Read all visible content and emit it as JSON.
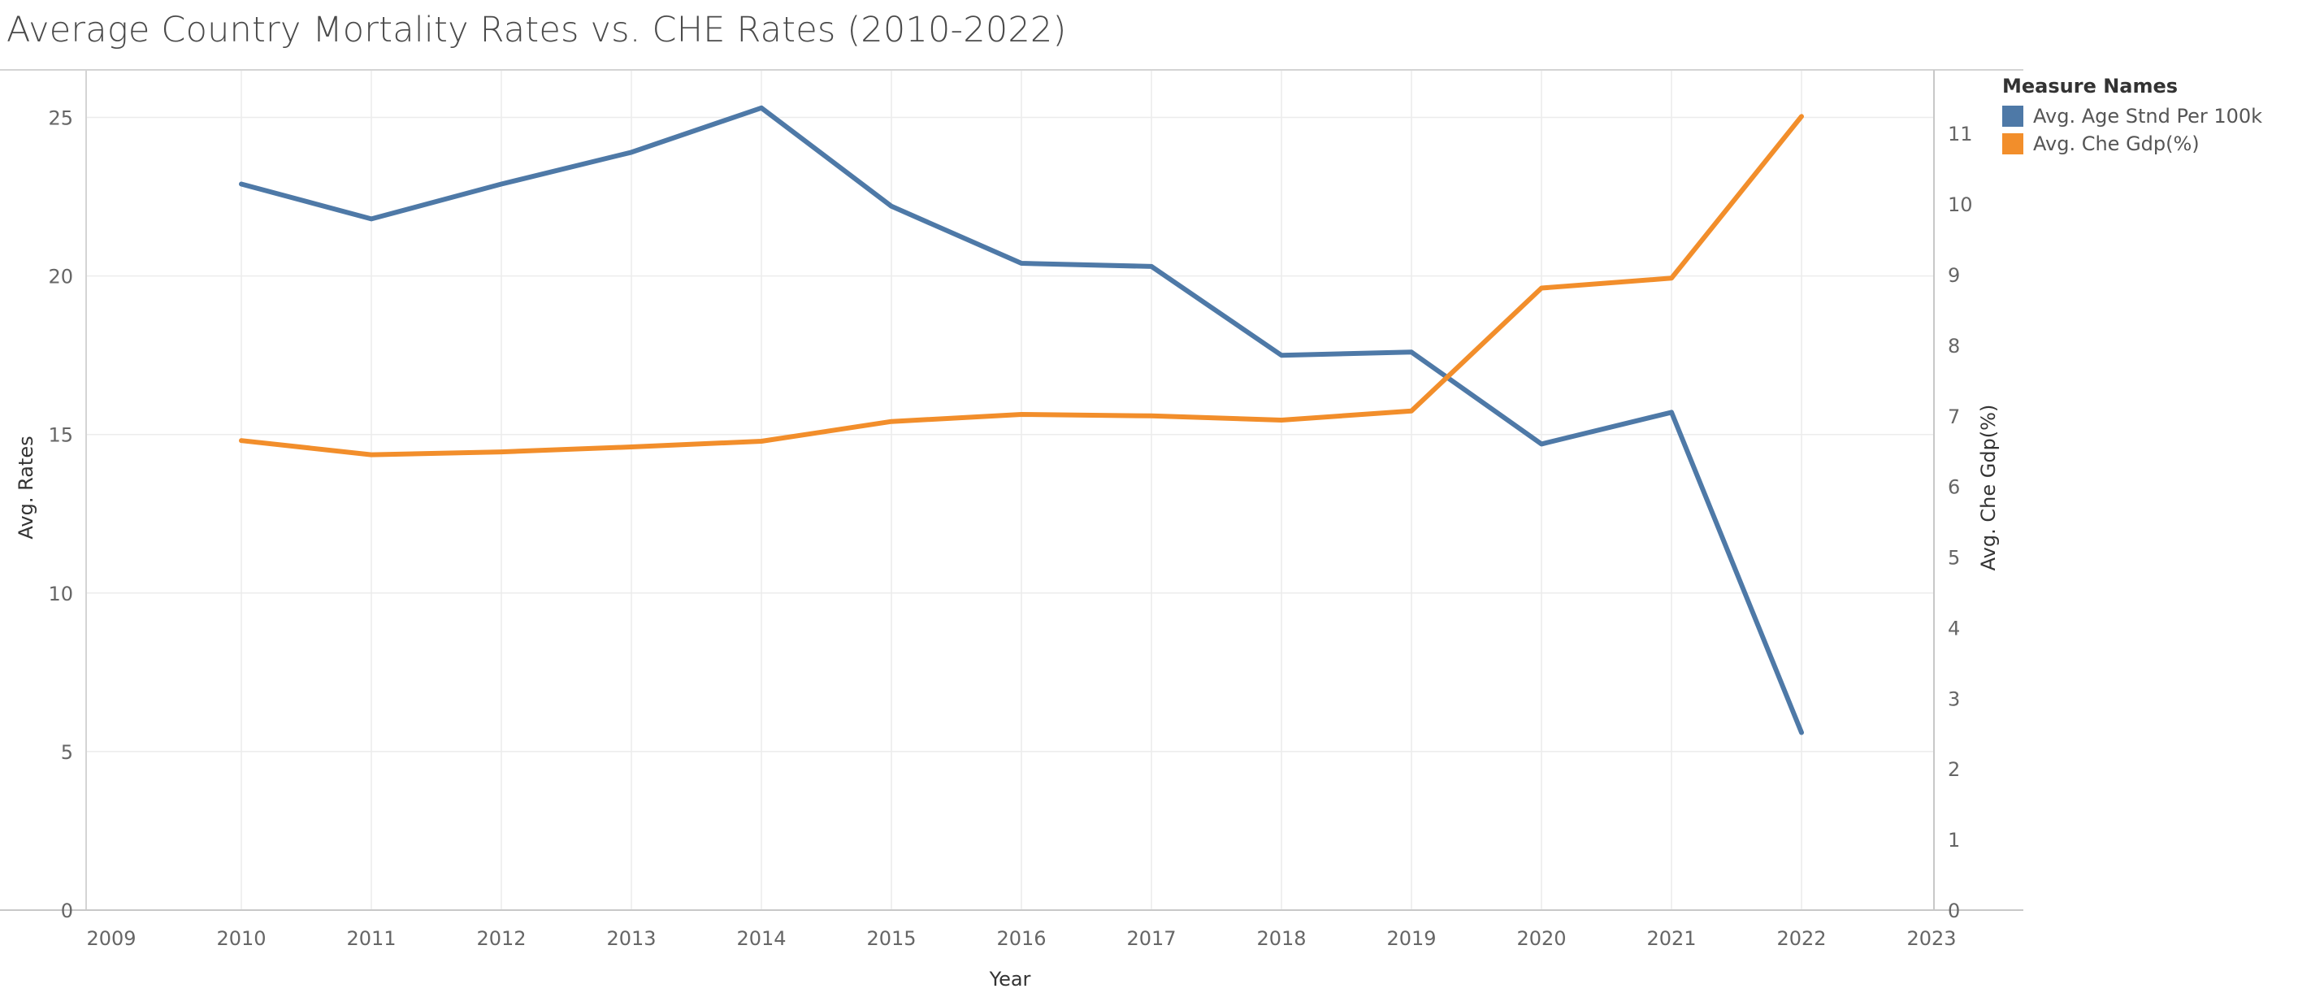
{
  "chart_data": {
    "type": "line",
    "title": "Average Country Mortality Rates vs. CHE Rates (2010-2022)",
    "xlabel": "Year",
    "ylabel": "Avg. Rates",
    "y2label": "Avg. Che Gdp(%)",
    "x_ticks": [
      2009,
      2010,
      2011,
      2012,
      2013,
      2014,
      2015,
      2016,
      2017,
      2018,
      2019,
      2020,
      2021,
      2022,
      2023
    ],
    "xlim": [
      2009,
      2023
    ],
    "ylim": [
      0,
      26.5
    ],
    "y_ticks": [
      0,
      5,
      10,
      15,
      20,
      25
    ],
    "y2lim": [
      0,
      11.9
    ],
    "y2_ticks": [
      0,
      1,
      2,
      3,
      4,
      5,
      6,
      7,
      8,
      9,
      10,
      11
    ],
    "grid": true,
    "legend": {
      "title": "Measure Names",
      "placement": "right"
    },
    "x": [
      2010,
      2011,
      2012,
      2013,
      2014,
      2015,
      2016,
      2017,
      2018,
      2019,
      2020,
      2021,
      2022
    ],
    "series": [
      {
        "name": "Avg. Age Stnd Per 100k",
        "axis": "left",
        "color": "#4e79a7",
        "values": [
          22.9,
          21.8,
          22.9,
          23.9,
          25.3,
          22.2,
          20.4,
          20.3,
          17.5,
          17.6,
          14.7,
          15.7,
          5.6
        ]
      },
      {
        "name": "Avg. Che Gdp(%)",
        "axis": "right",
        "color": "#f28e2b",
        "values": [
          6.65,
          6.45,
          6.49,
          6.56,
          6.64,
          6.92,
          7.02,
          7.0,
          6.94,
          7.07,
          8.81,
          8.95,
          11.24
        ]
      }
    ]
  }
}
